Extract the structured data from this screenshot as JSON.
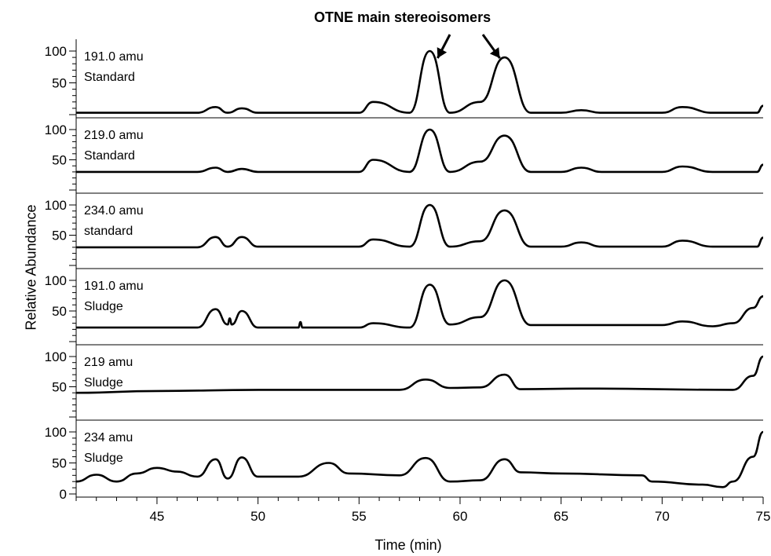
{
  "chart_data": {
    "type": "line",
    "title": "OTNE main stereoisomers",
    "xlabel": "Time (min)",
    "ylabel": "Relative Abundance",
    "xlim": [
      41,
      75
    ],
    "x_ticks": [
      45,
      50,
      55,
      60,
      65,
      70,
      75
    ],
    "grid": false,
    "legend": "none",
    "annotations": [
      {
        "text": "OTNE main stereoisomers",
        "arrows_to_x": [
          58.5,
          62.2
        ]
      }
    ],
    "panels": [
      {
        "label_lines": [
          "191.0 amu",
          "Standard"
        ],
        "yticks": [
          50,
          100
        ],
        "series": [
          {
            "name": "",
            "x": [
              41,
              47,
              47.9,
              48.5,
              49.2,
              50,
              55,
              55.7,
              57.5,
              58.5,
              59.5,
              61,
              62.2,
              63.5,
              65,
              66,
              67,
              70,
              71,
              72.5,
              74.7,
              75
            ],
            "y": [
              3,
              3,
              12,
              3,
              10,
              3,
              3,
              20,
              3,
              100,
              3,
              20,
              90,
              3,
              3,
              7,
              3,
              3,
              12,
              3,
              3,
              14
            ]
          }
        ]
      },
      {
        "label_lines": [
          "219.0 amu",
          "Standard"
        ],
        "yticks": [
          50,
          100
        ],
        "series": [
          {
            "name": "",
            "x": [
              41,
              47,
              47.9,
              48.5,
              49.2,
              50,
              55,
              55.7,
              57.5,
              58.5,
              59.5,
              61,
              62.2,
              63.5,
              65,
              66,
              67,
              70,
              71,
              72.5,
              74.7,
              75
            ],
            "y": [
              30,
              30,
              37,
              30,
              35,
              30,
              30,
              50,
              30,
              100,
              30,
              47,
              90,
              30,
              30,
              37,
              30,
              30,
              39,
              30,
              30,
              42
            ]
          }
        ]
      },
      {
        "label_lines": [
          "234.0 amu",
          "standard"
        ],
        "yticks": [
          50,
          100
        ],
        "series": [
          {
            "name": "",
            "x": [
              41,
              47,
              47.9,
              48.5,
              49.2,
              50,
              55,
              55.7,
              57.5,
              58.5,
              59.5,
              61,
              62.2,
              63.5,
              65,
              66,
              67,
              70,
              71,
              72.5,
              74.7,
              75
            ],
            "y": [
              30,
              30,
              47,
              31,
              47,
              31,
              31,
              43,
              31,
              100,
              31,
              40,
              91,
              31,
              31,
              38,
              31,
              31,
              41,
              31,
              31,
              46
            ]
          }
        ]
      },
      {
        "label_lines": [
          "191.0 amu",
          "Sludge"
        ],
        "yticks": [
          50,
          100
        ],
        "series": [
          {
            "name": "",
            "x": [
              41,
              47,
              47.9,
              48.5,
              48.6,
              48.7,
              49.2,
              50,
              52,
              52.1,
              52.2,
              55,
              55.7,
              57.5,
              58.5,
              59.5,
              61,
              62.2,
              63.5,
              66,
              70,
              71,
              72.5,
              73.5,
              74.5,
              75
            ],
            "y": [
              23,
              23,
              53,
              28,
              38,
              28,
              50,
              23,
              23,
              32,
              23,
              23,
              30,
              23,
              93,
              28,
              40,
              100,
              27,
              27,
              27,
              33,
              25,
              30,
              55,
              74
            ]
          }
        ]
      },
      {
        "label_lines": [
          "219 amu",
          "Sludge"
        ],
        "yticks": [
          50,
          100
        ],
        "series": [
          {
            "name": "",
            "x": [
              41,
              45,
              50,
              57,
              58.3,
              59.5,
              61,
              62.2,
              63,
              66,
              73.5,
              74.5,
              75
            ],
            "y": [
              40,
              43,
              45,
              45,
              62,
              48,
              49,
              70,
              46,
              47,
              45,
              68,
              100
            ]
          }
        ]
      },
      {
        "label_lines": [
          "234 amu",
          "Sludge"
        ],
        "yticks": [
          0,
          50,
          100
        ],
        "series": [
          {
            "name": "",
            "x": [
              41,
              42,
              43,
              44,
              45,
              46,
              47,
              47.9,
              48.5,
              49.2,
              50,
              51,
              52,
              53.5,
              54.5,
              57,
              58.3,
              59.5,
              61,
              62.2,
              63,
              65,
              69,
              69.5,
              72,
              73,
              73.5,
              74.5,
              75
            ],
            "y": [
              20,
              31,
              20,
              33,
              42,
              36,
              28,
              56,
              25,
              59,
              28,
              28,
              28,
              50,
              33,
              30,
              58,
              20,
              22,
              56,
              35,
              33,
              30,
              20,
              15,
              11,
              20,
              60,
              100
            ]
          }
        ]
      }
    ]
  }
}
